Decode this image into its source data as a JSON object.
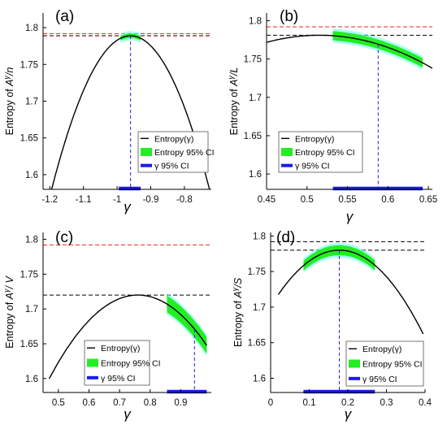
{
  "colors": {
    "curve": "#000000",
    "ci_fill": "#22ee22",
    "ci_halo": "#66ffee",
    "ci_bar": "#1a1aee",
    "ref_red": "#ee2222",
    "ref_black": "#000000",
    "vline": "#2222dd"
  },
  "chart_data": [
    {
      "panel_label": "(a)",
      "type": "line",
      "xlabel": "γ",
      "ylabel_parts": [
        "Entropy of ",
        "A",
        "γ",
        "/n"
      ],
      "xlim": [
        -1.22,
        -0.72
      ],
      "ylim": [
        1.58,
        1.82
      ],
      "xticks": [
        -1.2,
        -1.1,
        -1.0,
        -0.9,
        -0.8
      ],
      "xticklabels": [
        "-1.2",
        "-1.1",
        "-1",
        "-0.9",
        "-0.8"
      ],
      "yticks": [
        1.6,
        1.65,
        1.7,
        1.75,
        1.8
      ],
      "yticklabels": [
        "1.6",
        "1.65",
        "1.7",
        "1.75",
        "1.8"
      ],
      "curve": {
        "x_peak": -0.96,
        "y_peak": 1.789,
        "curvature": 3.8,
        "x_range": [
          -1.22,
          -0.72
        ]
      },
      "ci_band": {
        "x_range": [
          -0.99,
          -0.93
        ],
        "halfwidth": 0.003
      },
      "gamma_ci": [
        -0.995,
        -0.93
      ],
      "vline_x": -0.96,
      "hlines": [
        {
          "y": 1.792,
          "color": "red"
        },
        {
          "y": 1.789,
          "color": "black"
        }
      ],
      "legend": {
        "position": "lower-right",
        "entries": [
          "Entropy(γ)",
          "Entropy 95% CI",
          "γ 95% CI"
        ]
      }
    },
    {
      "panel_label": "(b)",
      "type": "line",
      "xlabel": "γ",
      "ylabel_parts": [
        "Entropy of  ",
        "A",
        "γ",
        "/L"
      ],
      "xlim": [
        0.45,
        0.655
      ],
      "ylim": [
        1.58,
        1.81
      ],
      "xticks": [
        0.45,
        0.5,
        0.55,
        0.6,
        0.65
      ],
      "xticklabels": [
        "0.45",
        "0.5",
        "0.55",
        "0.6",
        "0.65"
      ],
      "yticks": [
        1.6,
        1.65,
        1.7,
        1.75,
        1.8
      ],
      "yticklabels": [
        "1.6",
        "1.65",
        "1.7",
        "1.75",
        "1.8"
      ],
      "curve": {
        "x_peak": 0.515,
        "y_peak": 1.781,
        "curvature": 2.2,
        "x_range": [
          0.45,
          0.655
        ]
      },
      "ci_band": {
        "x_range": [
          0.532,
          0.643
        ],
        "halfwidth": 0.006
      },
      "gamma_ci": [
        0.532,
        0.643
      ],
      "vline_x": 0.588,
      "hlines": [
        {
          "y": 1.792,
          "color": "red"
        },
        {
          "y": 1.781,
          "color": "black"
        }
      ],
      "legend": {
        "position": "lower-right",
        "entries": [
          "Entropy(γ)",
          "Entropy 95% CI",
          "γ 95% CI"
        ]
      }
    },
    {
      "panel_label": "(c)",
      "type": "line",
      "xlabel": "γ",
      "ylabel_parts": [
        "Entropy of  ",
        "A",
        "γ",
        "/ V"
      ],
      "xlim": [
        0.45,
        1.0
      ],
      "ylim": [
        1.58,
        1.81
      ],
      "xticks": [
        0.5,
        0.6,
        0.7,
        0.8,
        0.9
      ],
      "xticklabels": [
        "0.5",
        "0.6",
        "0.7",
        "0.8",
        "0.9"
      ],
      "yticks": [
        1.6,
        1.65,
        1.7,
        1.75,
        1.8
      ],
      "yticklabels": [
        "1.6",
        "1.65",
        "1.7",
        "1.75",
        "1.8"
      ],
      "curve": {
        "x_peak": 0.76,
        "y_peak": 1.72,
        "curvature": 1.43,
        "x_range": [
          0.47,
          0.985
        ]
      },
      "ci_band": {
        "x_range": [
          0.855,
          0.985
        ],
        "halfwidth": 0.012
      },
      "gamma_ci": [
        0.855,
        0.985
      ],
      "vline_x": 0.945,
      "hlines": [
        {
          "y": 1.792,
          "color": "red"
        },
        {
          "y": 1.72,
          "color": "black"
        }
      ],
      "legend": {
        "position": "lower-left",
        "entries": [
          "Entropy(γ)",
          "Entropy 95% CI",
          "γ 95% CI"
        ]
      }
    },
    {
      "panel_label": "(d)",
      "type": "line",
      "xlabel": "γ",
      "ylabel_parts": [
        "Entropy of ",
        "A",
        "γ",
        "/S"
      ],
      "xlim": [
        0.0,
        0.4
      ],
      "ylim": [
        1.58,
        1.805
      ],
      "xticks": [
        0,
        0.1,
        0.2,
        0.3,
        0.4
      ],
      "xticklabels": [
        "0",
        "0.1",
        "0.2",
        "0.3",
        "0.4"
      ],
      "yticks": [
        1.6,
        1.65,
        1.7,
        1.75,
        1.8
      ],
      "yticklabels": [
        "1.6",
        "1.65",
        "1.7",
        "1.75",
        "1.8"
      ],
      "curve": {
        "x_peak": 0.178,
        "y_peak": 1.78,
        "curvature": 2.5,
        "x_range": [
          0.02,
          0.395
        ]
      },
      "ci_band": {
        "x_range": [
          0.085,
          0.27
        ],
        "halfwidth": 0.007
      },
      "gamma_ci": [
        0.085,
        0.27
      ],
      "vline_x": 0.178,
      "hlines": [
        {
          "y": 1.792,
          "color": "black"
        },
        {
          "y": 1.78,
          "color": "black"
        }
      ],
      "legend": {
        "position": "lower-right",
        "entries": [
          "Entropy(γ)",
          "Entropy 95% CI",
          "γ 95% CI"
        ]
      }
    }
  ]
}
